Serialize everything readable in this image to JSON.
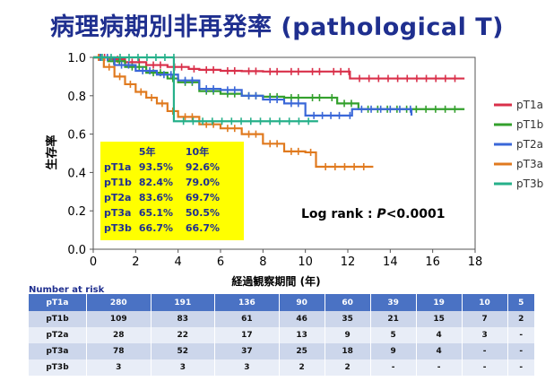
{
  "title": "病理病期別非再発率 (pathological T)",
  "chart_data": {
    "type": "line",
    "xlabel": "経過観察期間 (年)",
    "ylabel": "生存率",
    "xlim": [
      0,
      18
    ],
    "ylim": [
      0,
      1.0
    ],
    "xticks": [
      "0",
      "2",
      "4",
      "6",
      "8",
      "10",
      "12",
      "14",
      "16",
      "18"
    ],
    "yticks": [
      "0.0",
      "0.2",
      "0.4",
      "0.6",
      "0.8",
      "1.0"
    ],
    "legend_position": "right",
    "series": [
      {
        "name": "pT1a",
        "color": "#d9304a",
        "points": [
          [
            0,
            1.0
          ],
          [
            0.8,
            0.99
          ],
          [
            1.5,
            0.975
          ],
          [
            2.5,
            0.96
          ],
          [
            3.5,
            0.95
          ],
          [
            4.5,
            0.94
          ],
          [
            5,
            0.935
          ],
          [
            6,
            0.93
          ],
          [
            7,
            0.928
          ],
          [
            8,
            0.926
          ],
          [
            9,
            0.926
          ],
          [
            10,
            0.926
          ],
          [
            11,
            0.926
          ],
          [
            12,
            0.926
          ],
          [
            12.1,
            0.89
          ],
          [
            17.5,
            0.89
          ]
        ]
      },
      {
        "name": "pT1b",
        "color": "#33a02c",
        "points": [
          [
            0,
            1.0
          ],
          [
            0.7,
            0.98
          ],
          [
            1.5,
            0.95
          ],
          [
            2.5,
            0.92
          ],
          [
            3.5,
            0.89
          ],
          [
            4,
            0.87
          ],
          [
            5,
            0.824
          ],
          [
            6,
            0.81
          ],
          [
            7,
            0.8
          ],
          [
            8,
            0.795
          ],
          [
            9,
            0.79
          ],
          [
            10,
            0.79
          ],
          [
            11,
            0.79
          ],
          [
            11.5,
            0.76
          ],
          [
            12.5,
            0.73
          ],
          [
            17.5,
            0.73
          ]
        ]
      },
      {
        "name": "pT2a",
        "color": "#3a67d8",
        "points": [
          [
            0,
            1.0
          ],
          [
            1,
            0.96
          ],
          [
            2,
            0.93
          ],
          [
            3,
            0.91
          ],
          [
            4,
            0.88
          ],
          [
            5,
            0.836
          ],
          [
            6,
            0.83
          ],
          [
            7,
            0.8
          ],
          [
            8,
            0.78
          ],
          [
            9,
            0.76
          ],
          [
            10,
            0.697
          ],
          [
            12,
            0.697
          ],
          [
            12.2,
            0.73
          ],
          [
            14.9,
            0.73
          ],
          [
            15,
            0.697
          ]
        ]
      },
      {
        "name": "pT3a",
        "color": "#e07a1f",
        "points": [
          [
            0,
            1.0
          ],
          [
            0.5,
            0.95
          ],
          [
            1,
            0.9
          ],
          [
            1.5,
            0.86
          ],
          [
            2,
            0.82
          ],
          [
            2.5,
            0.79
          ],
          [
            3,
            0.76
          ],
          [
            3.5,
            0.72
          ],
          [
            4,
            0.69
          ],
          [
            5,
            0.651
          ],
          [
            6,
            0.63
          ],
          [
            7,
            0.6
          ],
          [
            8,
            0.55
          ],
          [
            9,
            0.51
          ],
          [
            10,
            0.505
          ],
          [
            10.5,
            0.43
          ],
          [
            13.2,
            0.43
          ]
        ]
      },
      {
        "name": "pT3b",
        "color": "#26b08a",
        "points": [
          [
            0,
            1.0
          ],
          [
            3.8,
            1.0
          ],
          [
            3.8,
            0.667
          ],
          [
            10.6,
            0.667
          ]
        ]
      }
    ],
    "table": {
      "headers": [
        "",
        "5年",
        "10年"
      ],
      "rows": [
        [
          "pT1a",
          "93.5%",
          "92.6%"
        ],
        [
          "pT1b",
          "82.4%",
          "79.0%"
        ],
        [
          "pT2a",
          "83.6%",
          "69.7%"
        ],
        [
          "pT3a",
          "65.1%",
          "50.5%"
        ],
        [
          "pT3b",
          "66.7%",
          "66.7%"
        ]
      ]
    },
    "annotation": {
      "prefix": "Log rank : ",
      "p": "P",
      "value": "<0.0001"
    }
  },
  "risk": {
    "label": "Number at risk",
    "rows": [
      [
        "pT1a",
        "280",
        "191",
        "136",
        "90",
        "60",
        "39",
        "19",
        "10",
        "5"
      ],
      [
        "pT1b",
        "109",
        "83",
        "61",
        "46",
        "35",
        "21",
        "15",
        "7",
        "2"
      ],
      [
        "pT2a",
        "28",
        "22",
        "17",
        "13",
        "9",
        "5",
        "4",
        "3",
        "-"
      ],
      [
        "pT3a",
        "78",
        "52",
        "37",
        "25",
        "18",
        "9",
        "4",
        "-",
        "-"
      ],
      [
        "pT3b",
        "3",
        "3",
        "3",
        "2",
        "2",
        "-",
        "-",
        "-",
        "-"
      ]
    ]
  }
}
